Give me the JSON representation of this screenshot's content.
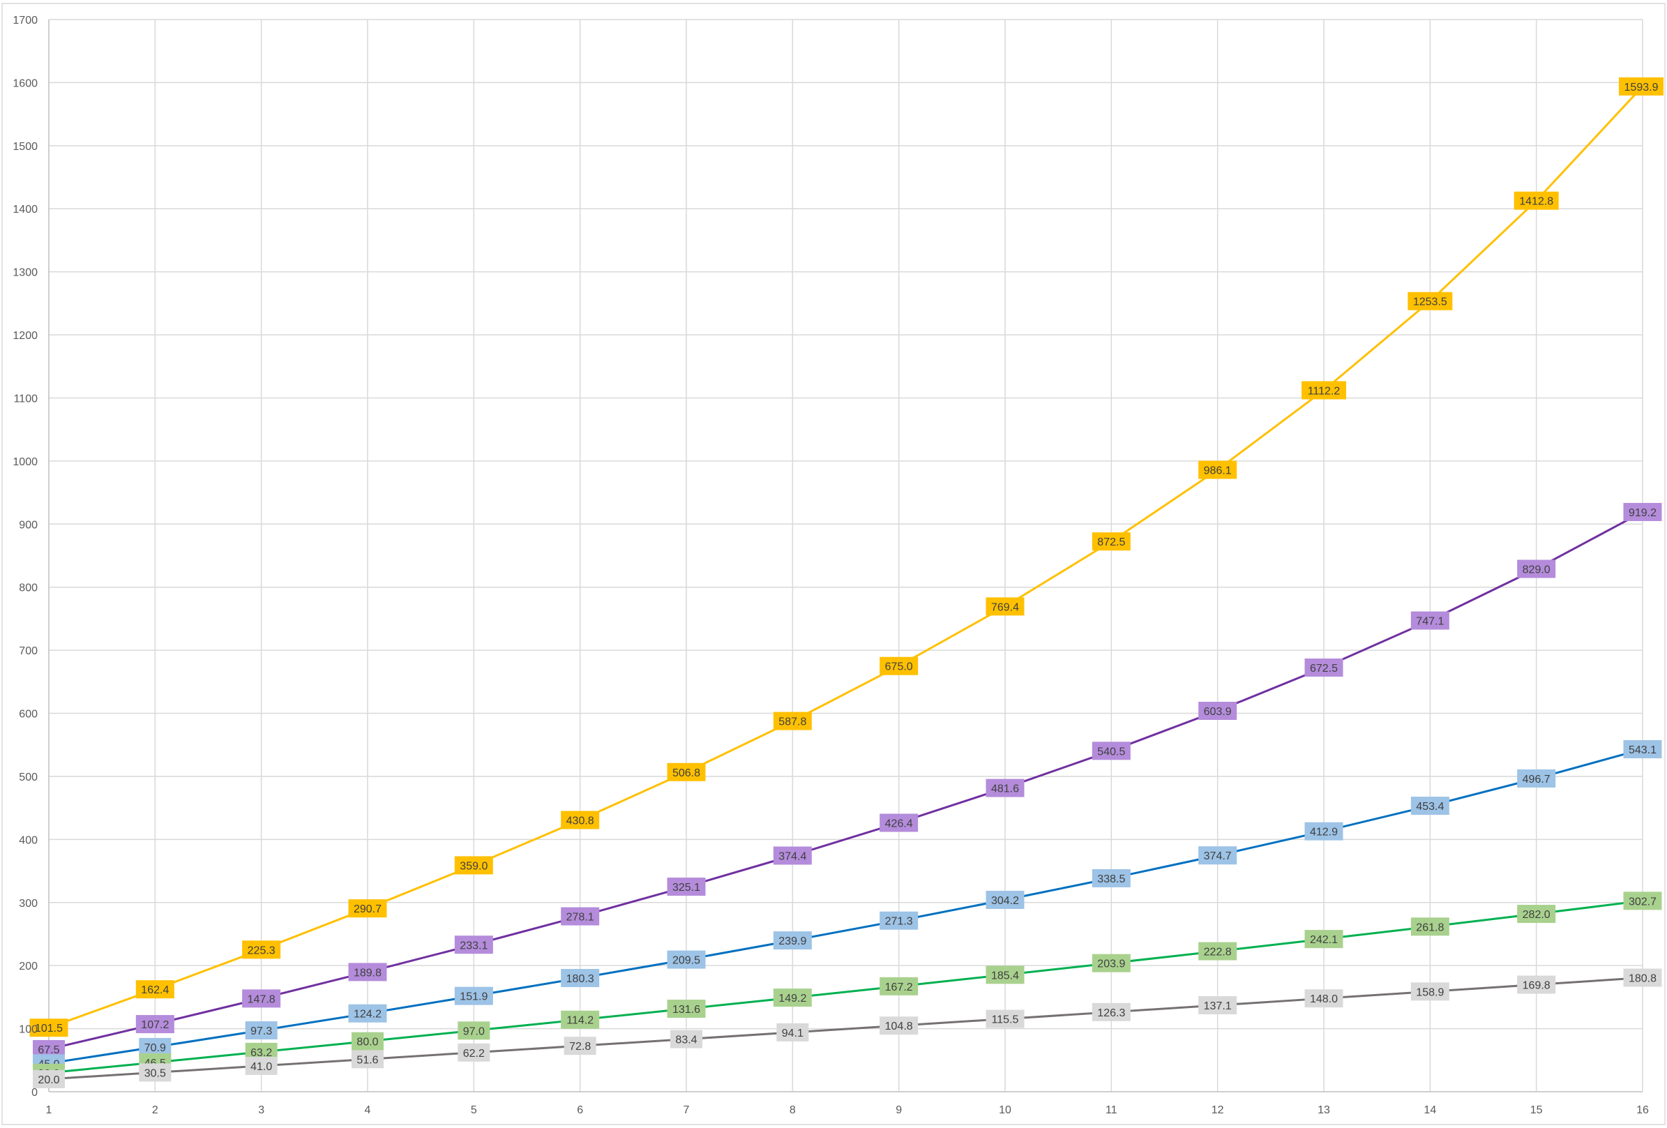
{
  "chart_data": {
    "type": "line",
    "title": "",
    "xlabel": "",
    "ylabel": "",
    "x": [
      1,
      2,
      3,
      4,
      5,
      6,
      7,
      8,
      9,
      10,
      11,
      12,
      13,
      14,
      15,
      16
    ],
    "x_tick_labels": [
      "1",
      "2",
      "3",
      "4",
      "5",
      "6",
      "7",
      "8",
      "9",
      "10",
      "11",
      "12",
      "13",
      "14",
      "15",
      "16"
    ],
    "ylim": [
      0,
      1700
    ],
    "y_ticks": [
      0,
      100,
      200,
      300,
      400,
      500,
      600,
      700,
      800,
      900,
      1000,
      1100,
      1200,
      1300,
      1400,
      1500,
      1600,
      1700
    ],
    "y_tick_labels": [
      "0",
      "100",
      "200",
      "300",
      "400",
      "500",
      "600",
      "700",
      "800",
      "900",
      "1000",
      "1100",
      "1200",
      "1300",
      "1400",
      "1500",
      "1600",
      "1700"
    ],
    "grid": true,
    "legend": "none",
    "series": [
      {
        "color": "#FFC000",
        "label_bg": "#FFC000",
        "values": [
          101.5,
          162.4,
          225.3,
          290.7,
          359.0,
          430.8,
          506.8,
          587.8,
          675.0,
          769.4,
          872.5,
          986.1,
          1112.2,
          1253.5,
          1412.8,
          1593.9
        ],
        "labels": [
          "101.5",
          "162.4",
          "225.3",
          "290.7",
          "359.0",
          "430.8",
          "506.8",
          "587.8",
          "675.0",
          "769.4",
          "872.5",
          "986.1",
          "1112.2",
          "1253.5",
          "1412.8",
          "1593.9"
        ]
      },
      {
        "color": "#7030A0",
        "label_bg": "#B48CDB",
        "values": [
          67.5,
          107.2,
          147.8,
          189.8,
          233.1,
          278.1,
          325.1,
          374.4,
          426.4,
          481.6,
          540.5,
          603.9,
          672.5,
          747.1,
          829.0,
          919.2
        ],
        "labels": [
          "67.5",
          "107.2",
          "147.8",
          "189.8",
          "233.1",
          "278.1",
          "325.1",
          "374.4",
          "426.4",
          "481.6",
          "540.5",
          "603.9",
          "672.5",
          "747.1",
          "829.0",
          "919.2"
        ]
      },
      {
        "color": "#0070C0",
        "label_bg": "#9DC3E6",
        "values": [
          45.0,
          70.9,
          97.3,
          124.2,
          151.9,
          180.3,
          209.5,
          239.9,
          271.3,
          304.2,
          338.5,
          374.7,
          412.9,
          453.4,
          496.7,
          543.1
        ],
        "labels": [
          "45.0",
          "70.9",
          "97.3",
          "124.2",
          "151.9",
          "180.3",
          "209.5",
          "239.9",
          "271.3",
          "304.2",
          "338.5",
          "374.7",
          "412.9",
          "453.4",
          "496.7",
          "543.1"
        ]
      },
      {
        "color": "#00B050",
        "label_bg": "#A9D18E",
        "values": [
          30.0,
          46.5,
          63.2,
          80.0,
          97.0,
          114.2,
          131.6,
          149.2,
          167.2,
          185.4,
          203.9,
          222.8,
          242.1,
          261.8,
          282.0,
          302.7
        ],
        "labels": [
          "30.0",
          "46.5",
          "63.2",
          "80.0",
          "97.0",
          "114.2",
          "131.6",
          "149.2",
          "167.2",
          "185.4",
          "203.9",
          "222.8",
          "242.1",
          "261.8",
          "282.0",
          "302.7"
        ]
      },
      {
        "color": "#767171",
        "label_bg": "#D9D9D9",
        "values": [
          20.0,
          30.5,
          41.0,
          51.6,
          62.2,
          72.8,
          83.4,
          94.1,
          104.8,
          115.5,
          126.3,
          137.1,
          148.0,
          158.9,
          169.8,
          180.8
        ],
        "labels": [
          "20.0",
          "30.5",
          "41.0",
          "51.6",
          "62.2",
          "72.8",
          "83.4",
          "94.1",
          "104.8",
          "115.5",
          "126.3",
          "137.1",
          "148.0",
          "158.9",
          "169.8",
          "180.8"
        ]
      }
    ]
  }
}
